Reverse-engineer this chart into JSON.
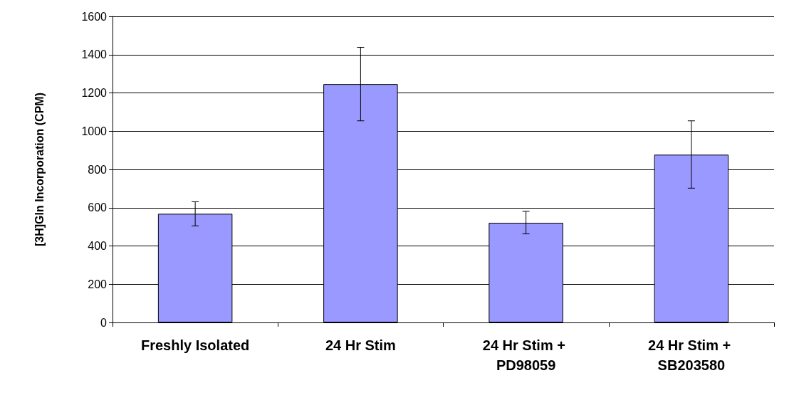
{
  "chart_data": {
    "type": "bar",
    "ylabel": "[3H]Gln Incorporation (CPM)",
    "categories": [
      "Freshly Isolated",
      "24 Hr Stim",
      "24 Hr Stim + PD98059",
      "24 Hr Stim + SB203580"
    ],
    "values": [
      568,
      1246,
      521,
      877
    ],
    "errors": [
      [
        505,
        631
      ],
      [
        1054,
        1438
      ],
      [
        463,
        581
      ],
      [
        702,
        1054
      ]
    ],
    "color": "#9999ff",
    "ylim": [
      0,
      1600
    ],
    "yticks": [
      0,
      200,
      400,
      600,
      800,
      1000,
      1200,
      1400,
      1600
    ],
    "grid": "y"
  }
}
